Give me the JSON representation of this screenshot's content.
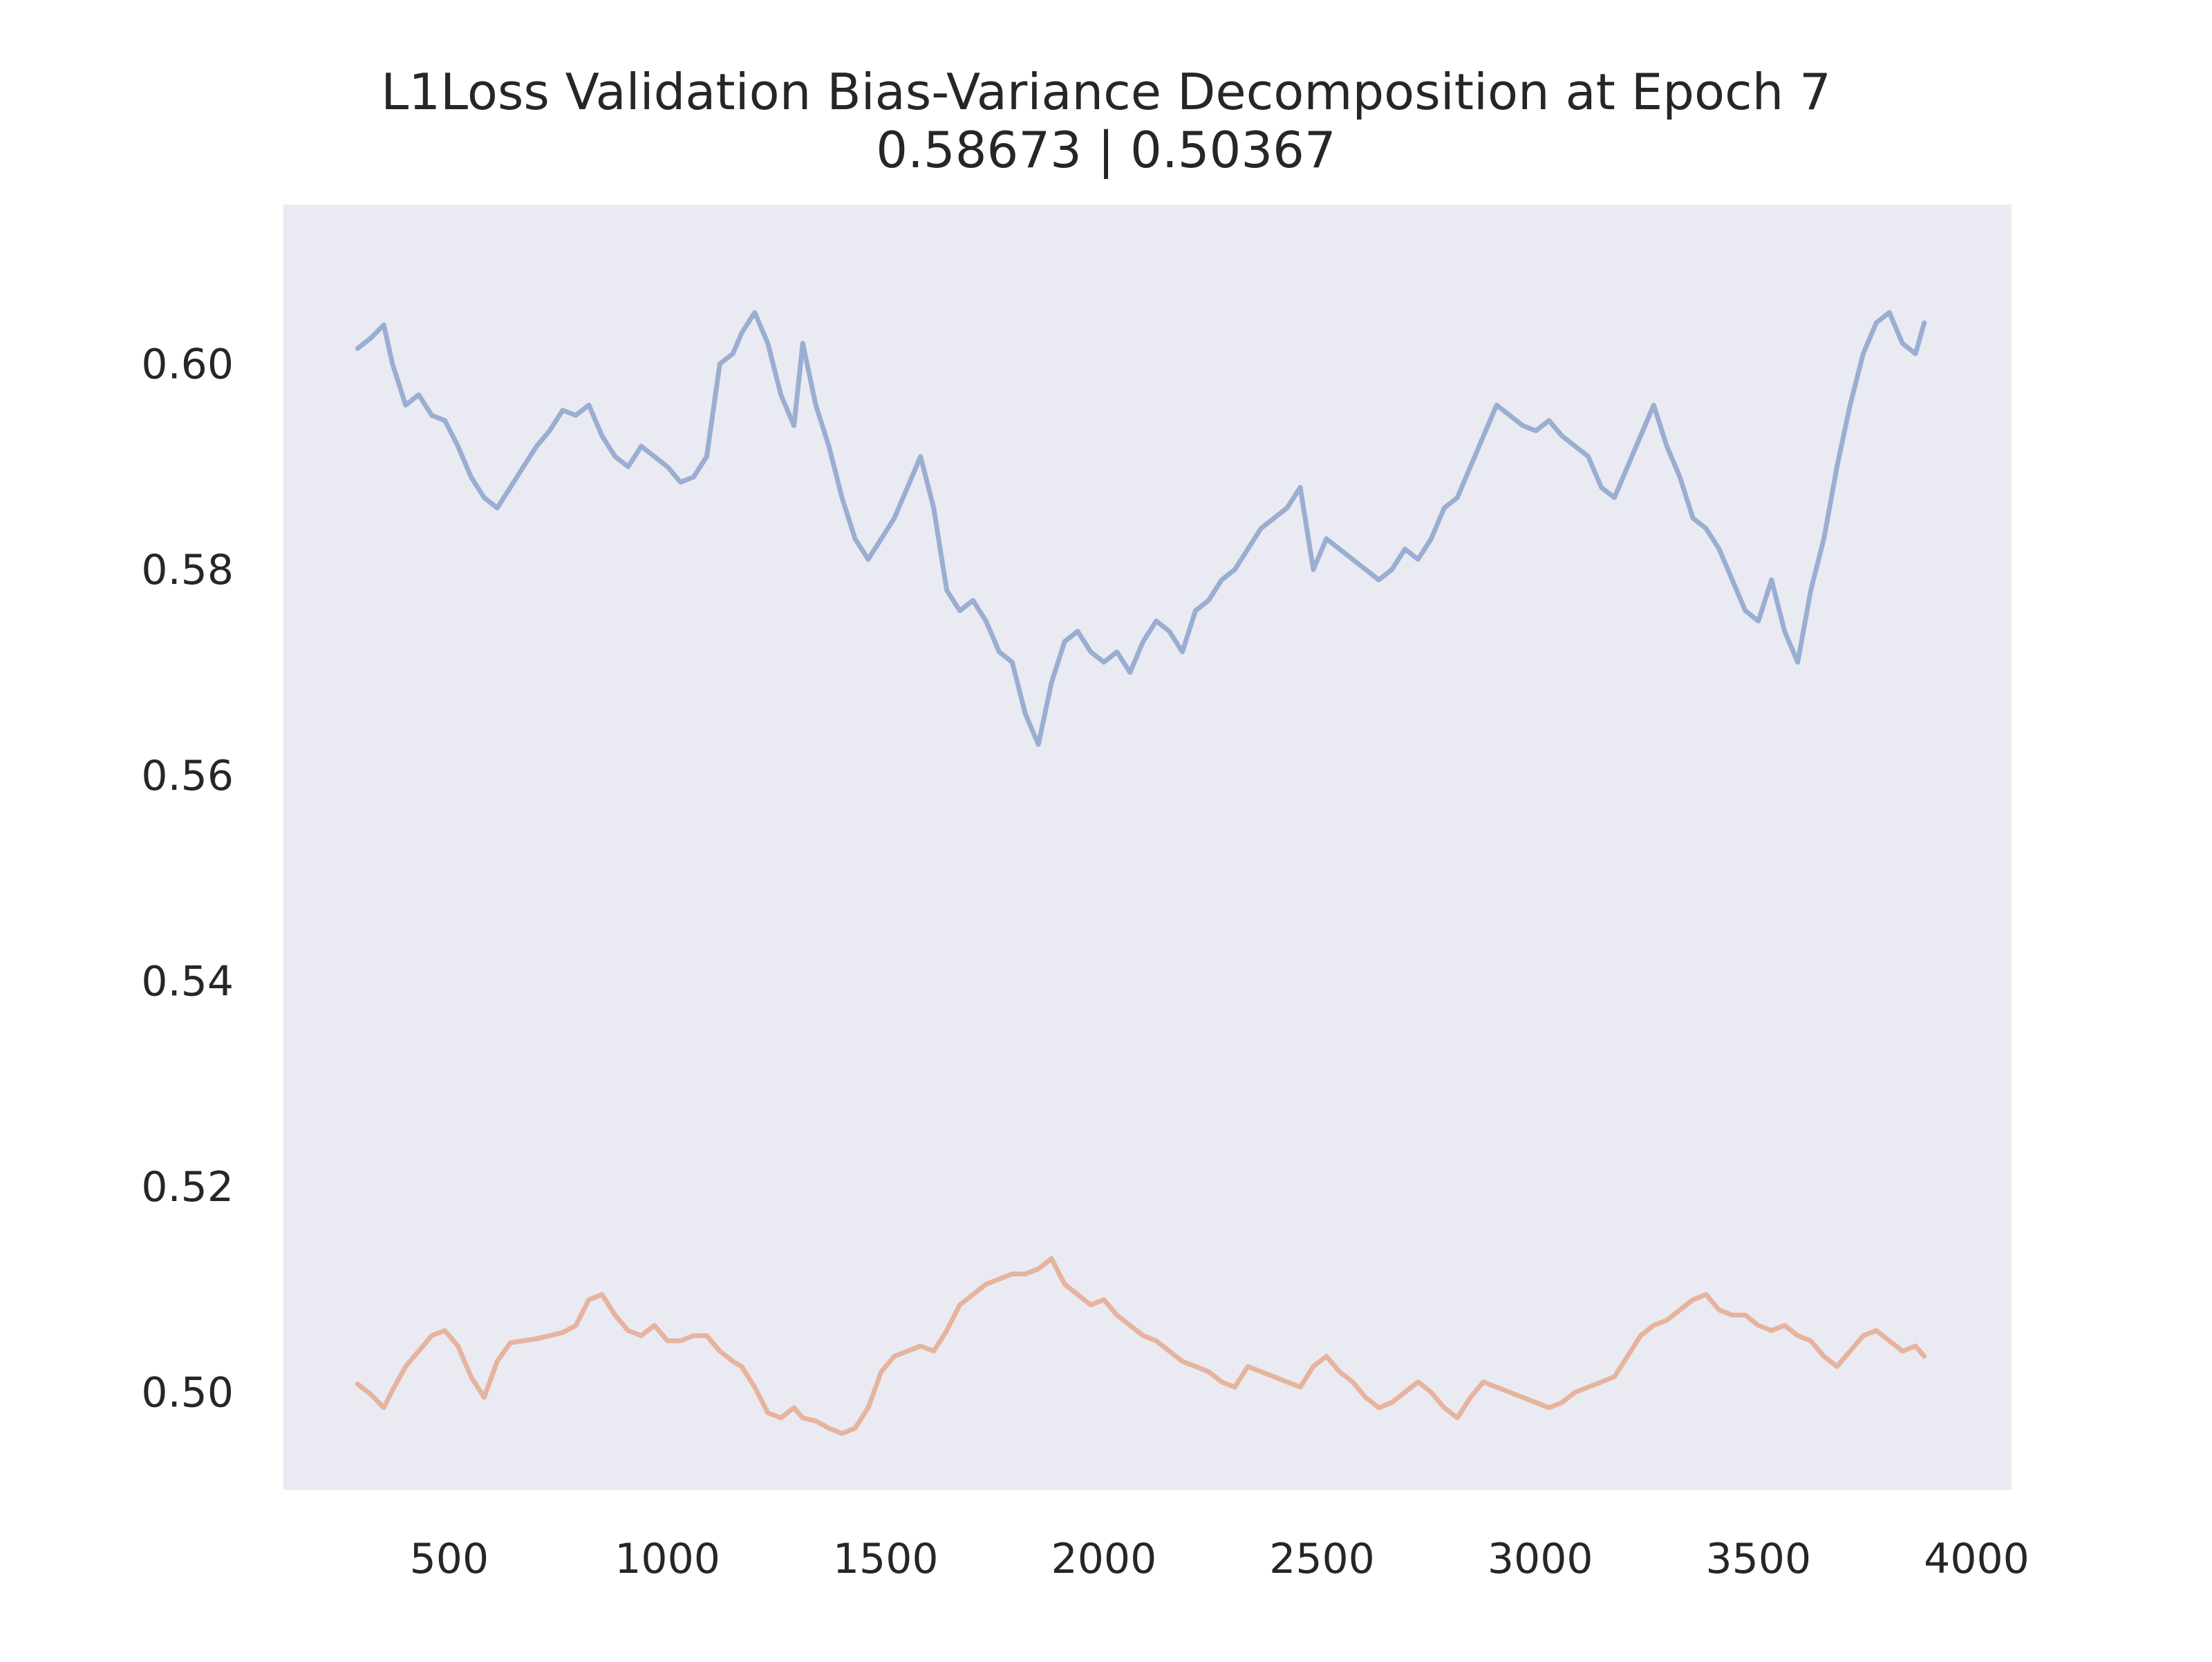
{
  "chart_data": {
    "type": "line",
    "title": "L1Loss Validation Bias-Variance Decomposition at Epoch 7",
    "subtitle": "0.58673 | 0.50367",
    "xlabel": "",
    "ylabel": "",
    "xlim": [
      120,
      4080
    ],
    "ylim": [
      0.4905,
      0.6155
    ],
    "xticks": [
      "500",
      "1000",
      "1500",
      "2000",
      "2500",
      "3000",
      "3500",
      "4000"
    ],
    "xtick_values": [
      500,
      1000,
      1500,
      2000,
      2500,
      3000,
      3500,
      4000
    ],
    "yticks": [
      "0.50",
      "0.52",
      "0.54",
      "0.56",
      "0.58",
      "0.60"
    ],
    "ytick_values": [
      0.5,
      0.52,
      0.54,
      0.56,
      0.58,
      0.6
    ],
    "grid": false,
    "legend": "none",
    "background_color": "#eaeaf2",
    "series": [
      {
        "color": "#9aaed2",
        "x": [
          290,
          320,
          350,
          370,
          400,
          430,
          460,
          490,
          520,
          550,
          580,
          610,
          640,
          670,
          700,
          730,
          760,
          790,
          820,
          850,
          880,
          910,
          940,
          970,
          1000,
          1030,
          1060,
          1090,
          1120,
          1150,
          1170,
          1200,
          1230,
          1260,
          1290,
          1310,
          1340,
          1370,
          1400,
          1430,
          1460,
          1490,
          1520,
          1550,
          1580,
          1610,
          1640,
          1670,
          1700,
          1730,
          1760,
          1790,
          1820,
          1850,
          1880,
          1910,
          1940,
          1970,
          2000,
          2030,
          2060,
          2090,
          2120,
          2150,
          2180,
          2210,
          2240,
          2270,
          2300,
          2330,
          2360,
          2390,
          2420,
          2450,
          2480,
          2510,
          2540,
          2570,
          2600,
          2630,
          2660,
          2690,
          2720,
          2750,
          2780,
          2810,
          2840,
          2870,
          2900,
          2930,
          2960,
          2990,
          3020,
          3050,
          3080,
          3110,
          3140,
          3170,
          3200,
          3230,
          3260,
          3290,
          3320,
          3350,
          3380,
          3410,
          3440,
          3470,
          3500,
          3530,
          3560,
          3590,
          3620,
          3650,
          3680,
          3710,
          3740,
          3770,
          3800,
          3830,
          3860,
          3880
        ],
        "y": [
          0.6015,
          0.6025,
          0.6038,
          0.6,
          0.596,
          0.597,
          0.595,
          0.5945,
          0.592,
          0.589,
          0.587,
          0.586,
          0.588,
          0.59,
          0.592,
          0.5935,
          0.5955,
          0.595,
          0.596,
          0.593,
          0.591,
          0.59,
          0.592,
          0.591,
          0.59,
          0.5885,
          0.589,
          0.591,
          0.6,
          0.601,
          0.603,
          0.605,
          0.602,
          0.597,
          0.594,
          0.602,
          0.596,
          0.592,
          0.587,
          0.583,
          0.581,
          0.583,
          0.585,
          0.588,
          0.591,
          0.586,
          0.578,
          0.576,
          0.577,
          0.575,
          0.572,
          0.571,
          0.566,
          0.563,
          0.569,
          0.573,
          0.574,
          0.572,
          0.571,
          0.572,
          0.57,
          0.573,
          0.575,
          0.574,
          0.572,
          0.576,
          0.577,
          0.579,
          0.58,
          0.582,
          0.584,
          0.585,
          0.586,
          0.588,
          0.58,
          0.583,
          0.582,
          0.581,
          0.58,
          0.579,
          0.58,
          0.582,
          0.581,
          0.583,
          0.586,
          0.587,
          0.59,
          0.593,
          0.596,
          0.595,
          0.594,
          0.5935,
          0.5945,
          0.593,
          0.592,
          0.591,
          0.588,
          0.587,
          0.59,
          0.593,
          0.596,
          0.592,
          0.589,
          0.585,
          0.584,
          0.582,
          0.579,
          0.576,
          0.575,
          0.579,
          0.574,
          0.571,
          0.578,
          0.583,
          0.59,
          0.596,
          0.601,
          0.604,
          0.605,
          0.602,
          0.601,
          0.604
        ]
      },
      {
        "color": "#e6b49e",
        "x": [
          290,
          320,
          350,
          370,
          400,
          430,
          460,
          490,
          520,
          550,
          580,
          610,
          640,
          670,
          700,
          730,
          760,
          790,
          820,
          850,
          880,
          910,
          940,
          970,
          1000,
          1030,
          1060,
          1090,
          1120,
          1150,
          1170,
          1200,
          1230,
          1260,
          1290,
          1310,
          1340,
          1370,
          1400,
          1430,
          1460,
          1490,
          1520,
          1550,
          1580,
          1610,
          1640,
          1670,
          1700,
          1730,
          1760,
          1790,
          1820,
          1850,
          1880,
          1910,
          1940,
          1970,
          2000,
          2030,
          2060,
          2090,
          2120,
          2150,
          2180,
          2210,
          2240,
          2270,
          2300,
          2330,
          2360,
          2390,
          2420,
          2450,
          2480,
          2510,
          2540,
          2570,
          2600,
          2630,
          2660,
          2690,
          2720,
          2750,
          2780,
          2810,
          2840,
          2870,
          2900,
          2930,
          2960,
          2990,
          3020,
          3050,
          3080,
          3110,
          3140,
          3170,
          3200,
          3230,
          3260,
          3290,
          3320,
          3350,
          3380,
          3410,
          3440,
          3470,
          3500,
          3530,
          3560,
          3590,
          3620,
          3650,
          3680,
          3710,
          3740,
          3770,
          3800,
          3830,
          3860,
          3880
        ],
        "y": [
          0.5008,
          0.4998,
          0.4985,
          0.5002,
          0.5025,
          0.504,
          0.5055,
          0.506,
          0.5045,
          0.5015,
          0.4995,
          0.503,
          0.5048,
          0.505,
          0.5052,
          0.5055,
          0.5058,
          0.5065,
          0.509,
          0.5095,
          0.5075,
          0.506,
          0.5055,
          0.5065,
          0.505,
          0.505,
          0.5055,
          0.5055,
          0.504,
          0.503,
          0.5025,
          0.5005,
          0.498,
          0.4975,
          0.4985,
          0.4975,
          0.4972,
          0.4965,
          0.496,
          0.4965,
          0.4985,
          0.502,
          0.5035,
          0.504,
          0.5045,
          0.504,
          0.506,
          0.5085,
          0.5095,
          0.5105,
          0.511,
          0.5115,
          0.5115,
          0.512,
          0.513,
          0.5105,
          0.5095,
          0.5085,
          0.509,
          0.5075,
          0.5065,
          0.5055,
          0.505,
          0.504,
          0.503,
          0.5025,
          0.502,
          0.501,
          0.5005,
          0.5025,
          0.502,
          0.5015,
          0.501,
          0.5005,
          0.5025,
          0.5035,
          0.502,
          0.501,
          0.4995,
          0.4985,
          0.499,
          0.5,
          0.501,
          0.5,
          0.4985,
          0.4975,
          0.4995,
          0.501,
          0.5005,
          0.5,
          0.4995,
          0.499,
          0.4985,
          0.499,
          0.5,
          0.5005,
          0.501,
          0.5015,
          0.5035,
          0.5055,
          0.5065,
          0.507,
          0.508,
          0.509,
          0.5095,
          0.508,
          0.5075,
          0.5075,
          0.5065,
          0.506,
          0.5065,
          0.5055,
          0.505,
          0.5035,
          0.5025,
          0.504,
          0.5055,
          0.506,
          0.505,
          0.504,
          0.5045,
          0.5035
        ]
      }
    ]
  }
}
